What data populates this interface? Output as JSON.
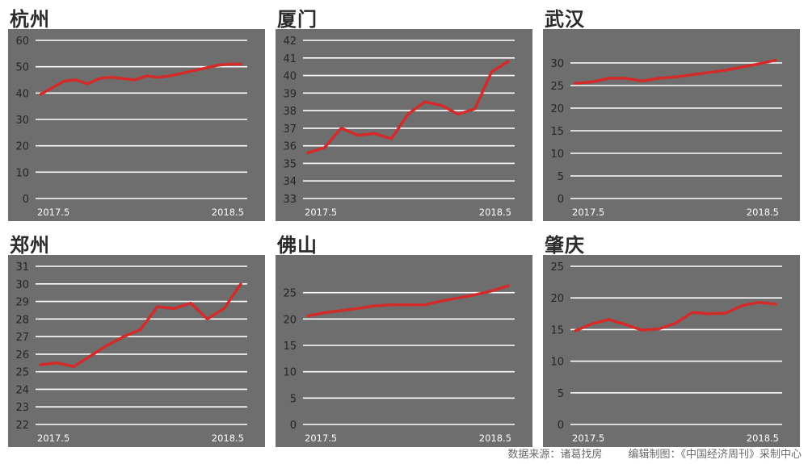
{
  "chart_data": [
    {
      "type": "line",
      "title": "杭州",
      "x_start_label": "2017.5",
      "x_end_label": "2018.5",
      "ylim": [
        0,
        60
      ],
      "yticks": [
        0,
        10,
        20,
        30,
        40,
        50,
        60
      ],
      "values": [
        39.5,
        42,
        44.5,
        45,
        43.5,
        45.5,
        46,
        45.5,
        45,
        46.5,
        46,
        46.5,
        47.5,
        48.5,
        49.5,
        50.5,
        51,
        51
      ]
    },
    {
      "type": "line",
      "title": "厦门",
      "x_start_label": "2017.5",
      "x_end_label": "2018.5",
      "ylim": [
        33,
        42
      ],
      "yticks": [
        33,
        34,
        35,
        36,
        37,
        38,
        39,
        40,
        41,
        42
      ],
      "values": [
        35.6,
        35.9,
        37.0,
        36.6,
        36.7,
        36.4,
        37.8,
        38.5,
        38.3,
        37.8,
        38.1,
        40.2,
        40.8
      ]
    },
    {
      "type": "line",
      "title": "武汉",
      "x_start_label": "2017.5",
      "x_end_label": "2018.5",
      "ylim": [
        0,
        35
      ],
      "yticks": [
        0,
        5,
        10,
        15,
        20,
        25,
        30
      ],
      "values": [
        25.5,
        25.8,
        26.6,
        26.6,
        26.0,
        26.6,
        26.9,
        27.4,
        27.9,
        28.4,
        29.1,
        29.8,
        30.6
      ]
    },
    {
      "type": "line",
      "title": "郑州",
      "x_start_label": "2017.5",
      "x_end_label": "2018.5",
      "ylim": [
        22,
        31
      ],
      "yticks": [
        22,
        23,
        24,
        25,
        26,
        27,
        28,
        29,
        30,
        31
      ],
      "values": [
        25.4,
        25.5,
        25.3,
        25.9,
        26.5,
        27.0,
        27.4,
        28.7,
        28.6,
        28.9,
        28.0,
        28.6,
        30.0
      ]
    },
    {
      "type": "line",
      "title": "佛山",
      "x_start_label": "2017.5",
      "x_end_label": "2018.5",
      "ylim": [
        0,
        30
      ],
      "yticks": [
        0,
        5,
        10,
        15,
        20,
        25
      ],
      "values": [
        20.6,
        21.2,
        21.6,
        22.0,
        22.5,
        22.7,
        22.7,
        22.7,
        23.4,
        24.0,
        24.6,
        25.3,
        26.3
      ]
    },
    {
      "type": "line",
      "title": "肇庆",
      "x_start_label": "2017.5",
      "x_end_label": "2018.5",
      "ylim": [
        0,
        25
      ],
      "yticks": [
        0,
        5,
        10,
        15,
        20,
        25
      ],
      "values": [
        14.8,
        15.9,
        16.6,
        15.8,
        14.9,
        15.1,
        16.0,
        17.7,
        17.5,
        17.6,
        18.8,
        19.3,
        19.0
      ]
    }
  ],
  "footer": {
    "source": "数据来源：诸葛找房",
    "credit": "编辑制图：《中国经济周刊》采制中心"
  },
  "colors": {
    "plot_bg": "#6e6e6e",
    "grid": "#ffffff",
    "line": "#d42a2a",
    "tick_text": "#262626",
    "xlabel_text": "#ffffff"
  }
}
